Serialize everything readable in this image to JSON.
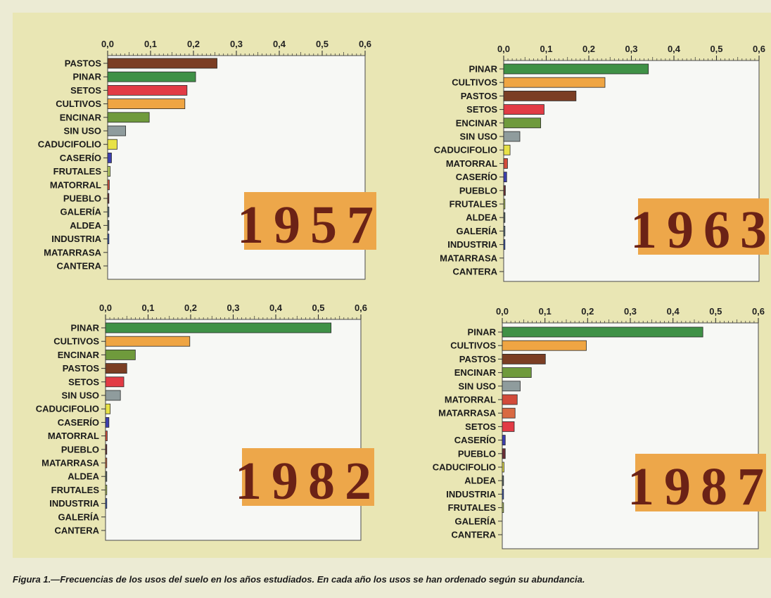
{
  "caption": {
    "label": "Figura 1.—",
    "text": "Frecuencias de los usos del suelo en los años estudiados. En cada año los usos se han ordenado según su abundancia."
  },
  "colors": {
    "PASTOS": "#7b3e24",
    "PINAR": "#3f9146",
    "SETOS": "#e23b45",
    "CULTIVOS": "#efa543",
    "ENCINAR": "#6f9a3c",
    "SIN USO": "#8f9c9d",
    "CADUCIFOLIO": "#e8e246",
    "CASERÍO": "#3c3fb0",
    "FRUTALES": "#b9cf62",
    "MATORRAL": "#d24b3a",
    "PUEBLO": "#6b2f36",
    "GALERÍA": "#5f7a8a",
    "ALDEA": "#5c6e6e",
    "INDUSTRIA": "#3b5cc0",
    "MATARRASA": "#d96a42",
    "CANTERA": "#888888",
    "year_box": "#eda74a",
    "year_text": "#6b2216",
    "plot_bg": "#f7f8f5"
  },
  "chart_data": [
    {
      "type": "bar",
      "year_label": "1957",
      "categories": [
        "PASTOS",
        "PINAR",
        "SETOS",
        "CULTIVOS",
        "ENCINAR",
        "SIN USO",
        "CADUCIFOLIO",
        "CASERÍO",
        "FRUTALES",
        "MATORRAL",
        "PUEBLO",
        "GALERÍA",
        "ALDEA",
        "INDUSTRIA",
        "MATARRASA",
        "CANTERA"
      ],
      "values": [
        0.255,
        0.205,
        0.185,
        0.18,
        0.097,
        0.042,
        0.022,
        0.009,
        0.006,
        0.004,
        0.003,
        0.003,
        0.003,
        0.003,
        0.0,
        0.0
      ],
      "xlim": [
        0,
        0.6
      ],
      "ticks": [
        "0,0",
        "0,1",
        "0,2",
        "0,3",
        "0,4",
        "0,5",
        "0,6"
      ],
      "grid": false
    },
    {
      "type": "bar",
      "year_label": "1963",
      "categories": [
        "PINAR",
        "CULTIVOS",
        "PASTOS",
        "SETOS",
        "ENCINAR",
        "SIN USO",
        "CADUCIFOLIO",
        "MATORRAL",
        "CASERÍO",
        "PUEBLO",
        "FRUTALES",
        "ALDEA",
        "GALERÍA",
        "INDUSTRIA",
        "MATARRASA",
        "CANTERA"
      ],
      "values": [
        0.34,
        0.238,
        0.17,
        0.095,
        0.087,
        0.038,
        0.015,
        0.009,
        0.007,
        0.004,
        0.003,
        0.003,
        0.003,
        0.003,
        0.0,
        0.0
      ],
      "xlim": [
        0,
        0.6
      ],
      "ticks": [
        "0,0",
        "0,1",
        "0,2",
        "0,3",
        "0,4",
        "0,5",
        "0,6"
      ],
      "grid": false
    },
    {
      "type": "bar",
      "year_label": "1982",
      "categories": [
        "PINAR",
        "CULTIVOS",
        "ENCINAR",
        "PASTOS",
        "SETOS",
        "SIN USO",
        "CADUCIFOLIO",
        "CASERÍO",
        "MATORRAL",
        "PUEBLO",
        "MATARRASA",
        "ALDEA",
        "FRUTALES",
        "INDUSTRIA",
        "GALERÍA",
        "CANTERA"
      ],
      "values": [
        0.53,
        0.198,
        0.07,
        0.05,
        0.043,
        0.035,
        0.011,
        0.008,
        0.004,
        0.003,
        0.003,
        0.003,
        0.003,
        0.003,
        0.0,
        0.0
      ],
      "xlim": [
        0,
        0.6
      ],
      "ticks": [
        "0,0",
        "0,1",
        "0,2",
        "0,3",
        "0,4",
        "0,5",
        "0,6"
      ],
      "grid": false
    },
    {
      "type": "bar",
      "year_label": "1987",
      "categories": [
        "PINAR",
        "CULTIVOS",
        "PASTOS",
        "ENCINAR",
        "SIN USO",
        "MATORRAL",
        "MATARRASA",
        "SETOS",
        "CASERÍO",
        "PUEBLO",
        "CADUCIFOLIO",
        "ALDEA",
        "INDUSTRIA",
        "FRUTALES",
        "GALERÍA",
        "CANTERA"
      ],
      "values": [
        0.47,
        0.197,
        0.101,
        0.068,
        0.042,
        0.035,
        0.03,
        0.028,
        0.007,
        0.007,
        0.004,
        0.003,
        0.003,
        0.003,
        0.0,
        0.0
      ],
      "xlim": [
        0,
        0.6
      ],
      "ticks": [
        "0,0",
        "0,1",
        "0,2",
        "0,3",
        "0,4",
        "0,5",
        "0,6"
      ],
      "grid": false
    }
  ]
}
